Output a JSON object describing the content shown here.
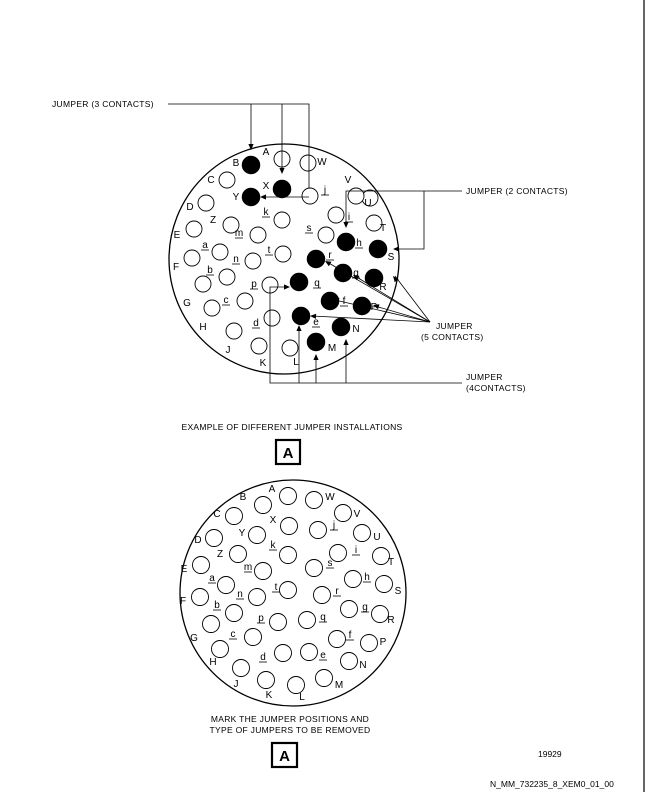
{
  "pins": [
    {
      "id": "A",
      "underline": false
    },
    {
      "id": "B",
      "underline": false
    },
    {
      "id": "C",
      "underline": false
    },
    {
      "id": "D",
      "underline": false
    },
    {
      "id": "E",
      "underline": false
    },
    {
      "id": "F",
      "underline": false
    },
    {
      "id": "G",
      "underline": false
    },
    {
      "id": "H",
      "underline": false
    },
    {
      "id": "J",
      "underline": false
    },
    {
      "id": "K",
      "underline": false
    },
    {
      "id": "L",
      "underline": false
    },
    {
      "id": "M",
      "underline": false
    },
    {
      "id": "N",
      "underline": false
    },
    {
      "id": "P",
      "underline": false
    },
    {
      "id": "R",
      "underline": false
    },
    {
      "id": "S",
      "underline": false
    },
    {
      "id": "T",
      "underline": false
    },
    {
      "id": "U",
      "underline": false
    },
    {
      "id": "V",
      "underline": false
    },
    {
      "id": "W",
      "underline": false
    },
    {
      "id": "X",
      "underline": false
    },
    {
      "id": "Y",
      "underline": false
    },
    {
      "id": "Z",
      "underline": false
    },
    {
      "id": "a",
      "underline": true
    },
    {
      "id": "b",
      "underline": true
    },
    {
      "id": "c",
      "underline": true
    },
    {
      "id": "d",
      "underline": true
    },
    {
      "id": "e",
      "underline": true
    },
    {
      "id": "f",
      "underline": true
    },
    {
      "id": "g",
      "underline": true
    },
    {
      "id": "h",
      "underline": true
    },
    {
      "id": "i",
      "underline": true
    },
    {
      "id": "j",
      "underline": true
    },
    {
      "id": "k",
      "underline": true
    },
    {
      "id": "m",
      "underline": true
    },
    {
      "id": "n",
      "underline": true
    },
    {
      "id": "p",
      "underline": true
    },
    {
      "id": "q",
      "underline": true
    },
    {
      "id": "r",
      "underline": true
    },
    {
      "id": "s",
      "underline": true
    },
    {
      "id": "t",
      "underline": true
    }
  ],
  "jumpered_pins": [
    "B",
    "X",
    "Y",
    "h",
    "S",
    "r",
    "g",
    "R",
    "q",
    "f",
    "P",
    "e",
    "N",
    "M"
  ],
  "callouts": {
    "jumper3": "JUMPER (3 CONTACTS)",
    "jumper2": "JUMPER (2 CONTACTS)",
    "jumper5_line1": "JUMPER",
    "jumper5_line2": "(5 CONTACTS)",
    "jumper4_line1": "JUMPER",
    "jumper4_line2": "(4CONTACTS)"
  },
  "captions": {
    "top": "EXAMPLE OF DIFFERENT JUMPER INSTALLATIONS",
    "bottom_line1": "MARK THE JUMPER POSITIONS AND",
    "bottom_line2": "TYPE OF JUMPERS TO BE REMOVED"
  },
  "view_label": "A",
  "ref_number": "19929",
  "figure_id": "N_MM_732235_8_XEM0_01_00"
}
